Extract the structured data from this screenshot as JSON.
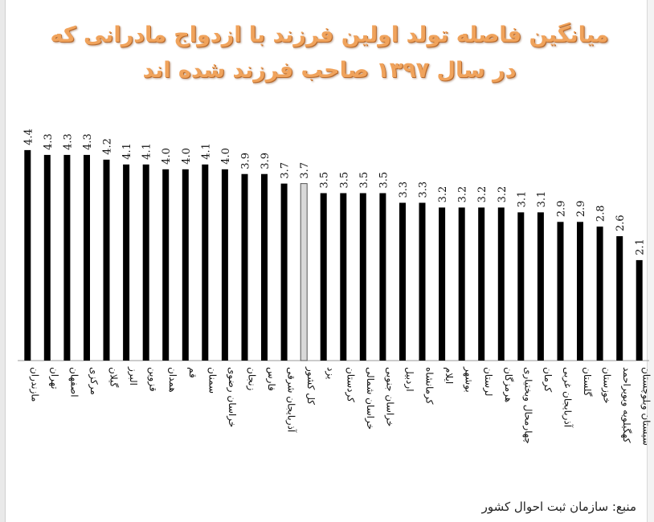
{
  "chart_data": {
    "type": "bar",
    "title_lines": [
      "میانگین فاصله تولد اولین فرزند با ازدواج مادرانی که",
      "در سال ۱۳۹۷ صاحب فرزند شده اند"
    ],
    "categories": [
      "مازندران",
      "تهران",
      "اصفهان",
      "مرکزی",
      "گیلان",
      "البرز",
      "قزوین",
      "همدان",
      "قم",
      "سمنان",
      "خراسان رضوی",
      "زنجان",
      "فارس",
      "آذربایجان شرقی",
      "کل کشور",
      "یزد",
      "کردستان",
      "خراسان شمالی",
      "خراسان جنوبی",
      "اردبیل",
      "کرمانشاه",
      "ایلام",
      "بوشهر",
      "لرستان",
      "هرمزگان",
      "چهارمحال وبختیاری",
      "کرمان",
      "آذربایجان غربی",
      "گلستان",
      "خوزستان",
      "کهگیلویه وبویراحمد",
      "سیستان وبلوچستان"
    ],
    "values": [
      4.4,
      4.3,
      4.3,
      4.3,
      4.2,
      4.1,
      4.1,
      4.0,
      4.0,
      4.1,
      4.0,
      3.9,
      3.9,
      3.7,
      3.7,
      3.5,
      3.5,
      3.5,
      3.5,
      3.3,
      3.3,
      3.2,
      3.2,
      3.2,
      3.2,
      3.1,
      3.1,
      2.9,
      2.9,
      2.8,
      2.6,
      2.1
    ],
    "value_labels": [
      "4.4",
      "4.3",
      "4.3",
      "4.3",
      "4.2",
      "4.1",
      "4.1",
      "4.0",
      "4.0",
      "4.1",
      "4.0",
      "3.9",
      "3.9",
      "3.7",
      "3.7",
      "3.5",
      "3.5",
      "3.5",
      "3.5",
      "3.3",
      "3.3",
      "3.2",
      "3.2",
      "3.2",
      "3.2",
      "3.1",
      "3.1",
      "2.9",
      "2.9",
      "2.8",
      "2.6",
      "2.1"
    ],
    "highlight_category": "کل کشور",
    "ylim": [
      0,
      4.55
    ],
    "grid": false,
    "legend": "none",
    "colors": {
      "bar": "#000000",
      "highlight_fill": "#d9d9d9",
      "highlight_stroke": "#555555"
    }
  },
  "source_text": "منبع: سازمان ثبت احوال کشور"
}
